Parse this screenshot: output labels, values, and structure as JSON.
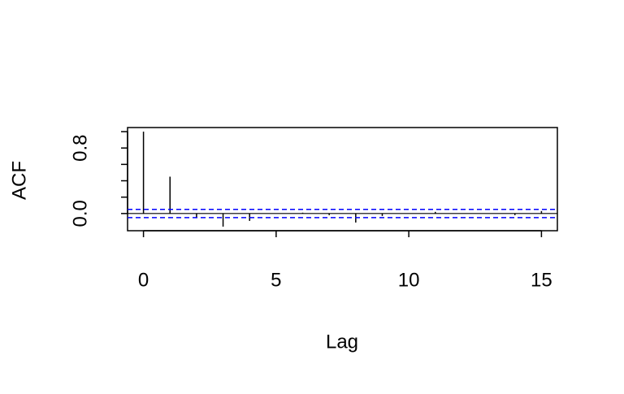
{
  "chart_data": {
    "type": "acf",
    "x_label": "Lag",
    "y_label": "ACF",
    "x": [
      0,
      1,
      2,
      3,
      4,
      5,
      6,
      7,
      8,
      9,
      10,
      11,
      12,
      13,
      14,
      15
    ],
    "values": [
      1.0,
      0.45,
      -0.05,
      -0.16,
      -0.09,
      0.0,
      0.01,
      -0.02,
      -0.11,
      -0.03,
      0.0,
      0.02,
      0.0,
      0.0,
      -0.02,
      0.03
    ],
    "color": "#000000",
    "ci_lines": [
      0.05,
      -0.05
    ],
    "ci_color": "#0000ff",
    "xlim": [
      -0.6,
      15.6
    ],
    "xticks": [
      0,
      5,
      10,
      15
    ],
    "ylim": [
      -0.21,
      1.05
    ],
    "yticks": [
      {
        "value": 0,
        "label": "0.0"
      },
      {
        "value": 0.2,
        "label": null
      },
      {
        "value": 0.4,
        "label": null
      },
      {
        "value": 0.6,
        "label": null
      },
      {
        "value": 0.8,
        "label": "0.8"
      },
      {
        "value": 1.0,
        "label": null
      }
    ]
  }
}
